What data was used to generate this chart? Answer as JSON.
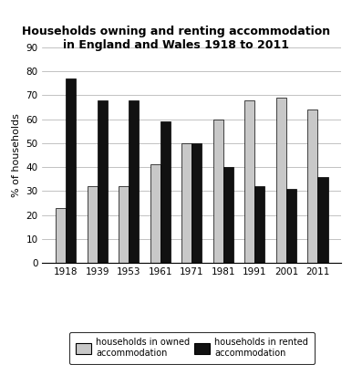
{
  "title_line1": "Households owning and renting accommodation",
  "title_line2": "in England and Wales 1918 to 2011",
  "years": [
    "1918",
    "1939",
    "1953",
    "1961",
    "1971",
    "1981",
    "1991",
    "2001",
    "2011"
  ],
  "owned": [
    23,
    32,
    32,
    41,
    50,
    60,
    68,
    69,
    64
  ],
  "rented": [
    77,
    68,
    68,
    59,
    50,
    40,
    32,
    31,
    36
  ],
  "owned_color": "#c8c8c8",
  "rented_color": "#111111",
  "ylabel": "% of households",
  "ylim": [
    0,
    90
  ],
  "yticks": [
    0,
    10,
    20,
    30,
    40,
    50,
    60,
    70,
    80,
    90
  ],
  "bar_width": 0.32,
  "legend_owned": "households in owned\naccommodation",
  "legend_rented": "households in rented\naccommodation",
  "title_fontsize": 9,
  "label_fontsize": 8,
  "tick_fontsize": 7.5
}
